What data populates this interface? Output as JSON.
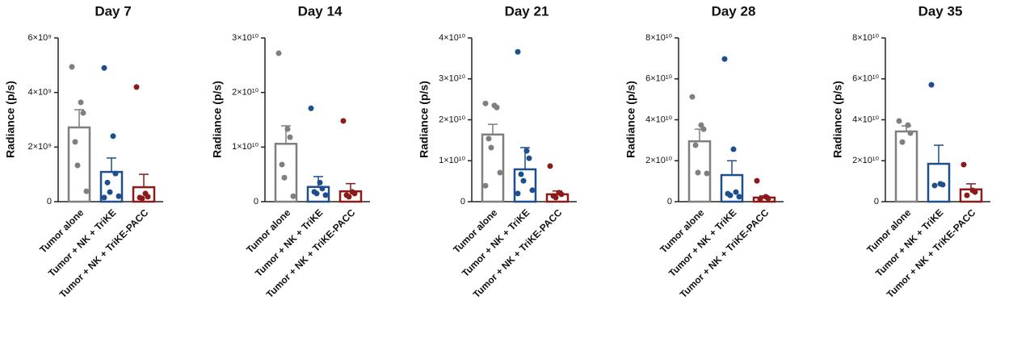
{
  "chart_data": [
    {
      "type": "bar",
      "title": "Day 7",
      "y_label": "Radiance (p/s)",
      "categories": [
        "Tumor alone",
        "Tumor + NK + TriKE",
        "Tumor + NK + TriKE-PACC"
      ],
      "colors": [
        "#7f7f7f",
        "#1f4e8c",
        "#8b1a1a"
      ],
      "values": [
        2720000000,
        1090000000,
        530000000
      ],
      "errors": [
        650000000,
        510000000,
        470000000
      ],
      "points": [
        [
          4940000000,
          3640000000,
          3250000000,
          2190000000,
          1330000000,
          380000000
        ],
        [
          4900000000,
          2400000000,
          1030000000,
          700000000,
          350000000,
          200000000,
          150000000
        ],
        [
          4200000000,
          300000000,
          180000000,
          150000000,
          120000000
        ]
      ],
      "ylim": [
        0,
        6000000000
      ],
      "yticks": [
        0,
        {
          "value": 2000000000,
          "label": "2×10⁹"
        },
        {
          "value": 4000000000,
          "label": "4×10⁹"
        },
        {
          "value": 6000000000,
          "label": "6×10⁹"
        }
      ]
    },
    {
      "type": "bar",
      "title": "Day 14",
      "y_label": "Radiance (p/s)",
      "categories": [
        "Tumor alone",
        "Tumor + NK + TriKE",
        "Tumor + NK + TriKE-PACC"
      ],
      "colors": [
        "#7f7f7f",
        "#1f4e8c",
        "#8b1a1a"
      ],
      "values": [
        10600000000,
        2700000000,
        1900000000
      ],
      "errors": [
        3300000000,
        1900000000,
        1400000000
      ],
      "points": [
        [
          27200000000,
          13300000000,
          11800000000,
          6800000000,
          4400000000,
          1000000000
        ],
        [
          17100000000,
          3500000000,
          2400000000,
          1800000000,
          1500000000,
          1200000000
        ],
        [
          14800000000,
          1800000000,
          1500000000,
          1200000000,
          900000000
        ]
      ],
      "ylim": [
        0,
        30000000000
      ],
      "yticks": [
        0,
        {
          "value": 10000000000,
          "label": "1×10¹⁰"
        },
        {
          "value": 20000000000,
          "label": "2×10¹⁰"
        },
        {
          "value": 30000000000,
          "label": "3×10¹⁰"
        }
      ]
    },
    {
      "type": "bar",
      "title": "Day 21",
      "y_label": "Radiance (p/s)",
      "categories": [
        "Tumor alone",
        "Tumor + NK + TriKE",
        "Tumor + NK + TriKE-PACC"
      ],
      "colors": [
        "#7f7f7f",
        "#1f4e8c",
        "#8b1a1a"
      ],
      "values": [
        16400000000,
        7900000000,
        1800000000
      ],
      "errors": [
        2500000000,
        5300000000,
        800000000
      ],
      "points": [
        [
          24000000000,
          23500000000,
          23000000000,
          15400000000,
          13200000000,
          7100000000,
          3900000000
        ],
        [
          36600000000,
          12400000000,
          10600000000,
          6700000000,
          5100000000,
          2800000000,
          2000000000
        ],
        [
          8700000000,
          2200000000,
          1800000000,
          1400000000,
          1000000000
        ]
      ],
      "ylim": [
        0,
        40000000000
      ],
      "yticks": [
        0,
        {
          "value": 10000000000,
          "label": "1×10¹⁰"
        },
        {
          "value": 20000000000,
          "label": "2×10¹⁰"
        },
        {
          "value": 30000000000,
          "label": "3×10¹⁰"
        },
        {
          "value": 40000000000,
          "label": "4×10¹⁰"
        }
      ]
    },
    {
      "type": "bar",
      "title": "Day 28",
      "y_label": "Radiance (p/s)",
      "categories": [
        "Tumor alone",
        "Tumor + NK + TriKE",
        "Tumor + NK + TriKE-PACC"
      ],
      "colors": [
        "#7f7f7f",
        "#1f4e8c",
        "#8b1a1a"
      ],
      "values": [
        29500000000,
        13000000000,
        2000000000
      ],
      "errors": [
        5900000000,
        7000000000,
        800000000
      ],
      "points": [
        [
          51200000000,
          37400000000,
          35400000000,
          27600000000,
          14200000000,
          13800000000
        ],
        [
          69700000000,
          25600000000,
          4700000000,
          3900000000,
          3100000000,
          2400000000
        ],
        [
          10200000000,
          2400000000,
          1600000000,
          1200000000
        ]
      ],
      "ylim": [
        0,
        80000000000
      ],
      "yticks": [
        0,
        {
          "value": 20000000000,
          "label": "2×10¹⁰"
        },
        {
          "value": 40000000000,
          "label": "4×10¹⁰"
        },
        {
          "value": 60000000000,
          "label": "6×10¹⁰"
        },
        {
          "value": 80000000000,
          "label": "8×10¹⁰"
        }
      ]
    },
    {
      "type": "bar",
      "title": "Day 35",
      "y_label": "Radiance (p/s)",
      "categories": [
        "Tumor alone",
        "Tumor + NK + TriKE",
        "Tumor + NK + TriKE-PACC"
      ],
      "colors": [
        "#7f7f7f",
        "#1f4e8c",
        "#8b1a1a"
      ],
      "values": [
        34300000000,
        18500000000,
        6000000000
      ],
      "errors": [
        2700000000,
        9100000000,
        2700000000
      ],
      "points": [
        [
          39400000000,
          37400000000,
          33500000000,
          29100000000
        ],
        [
          57100000000,
          8700000000,
          8300000000,
          7900000000
        ],
        [
          18100000000,
          5500000000,
          4700000000,
          3100000000
        ]
      ],
      "ylim": [
        0,
        80000000000
      ],
      "yticks": [
        0,
        {
          "value": 20000000000,
          "label": "2×10¹⁰"
        },
        {
          "value": 40000000000,
          "label": "4×10¹⁰"
        },
        {
          "value": 60000000000,
          "label": "6×10¹⁰"
        },
        {
          "value": 80000000000,
          "label": "8×10¹⁰"
        }
      ]
    }
  ]
}
